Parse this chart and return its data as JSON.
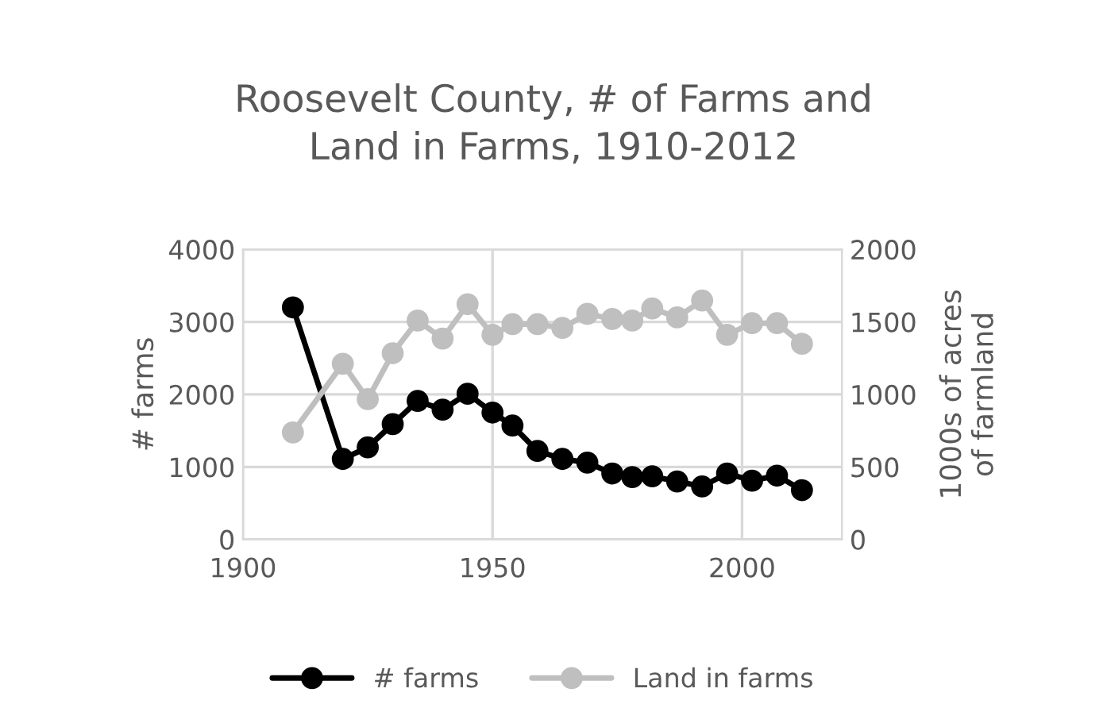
{
  "chart_data": {
    "type": "line",
    "title": "Roosevelt County, # of Farms and\nLand in Farms, 1910-2012",
    "ylabel": "# farms",
    "y2label": "1000s of acres\nof farmland",
    "x": [
      1910,
      1920,
      1925,
      1930,
      1935,
      1940,
      1945,
      1950,
      1954,
      1959,
      1964,
      1969,
      1974,
      1978,
      1982,
      1987,
      1992,
      1997,
      2002,
      2007,
      2012
    ],
    "series": [
      {
        "name": "# farms",
        "color": "#000000",
        "values": [
          3200,
          1110,
          1270,
          1590,
          1910,
          1790,
          2010,
          1750,
          1570,
          1220,
          1110,
          1060,
          910,
          860,
          870,
          800,
          730,
          910,
          810,
          880,
          680
        ]
      },
      {
        "name": "Land in farms",
        "color": "#bfbfbf",
        "axis": "y2",
        "values": [
          738,
          1211,
          967,
          1284,
          1509,
          1385,
          1622,
          1411,
          1484,
          1484,
          1458,
          1556,
          1520,
          1509,
          1593,
          1531,
          1647,
          1411,
          1491,
          1491,
          1349
        ]
      }
    ],
    "xlim": [
      1900,
      2020
    ],
    "xticks": [
      1900,
      1950,
      2000
    ],
    "ylim": [
      0,
      4000
    ],
    "yticks": [
      0,
      1000,
      2000,
      3000,
      4000
    ],
    "y2lim": [
      0,
      2000
    ],
    "y2ticks": [
      0,
      500,
      1000,
      1500,
      2000
    ],
    "grid": true,
    "legend": "bottom",
    "marker": "circle",
    "line_style": "solid"
  }
}
